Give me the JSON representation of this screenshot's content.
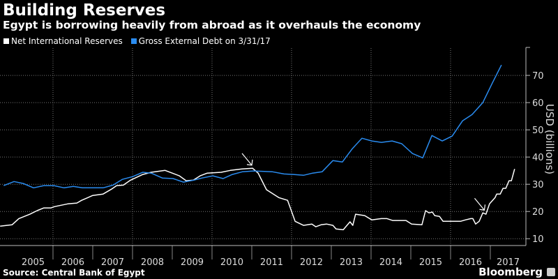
{
  "header": {
    "title": "Building Reserves",
    "subtitle": "Egypt is borrowing heavily from abroad as it overhauls the economy"
  },
  "footer": {
    "source": "Source: Central Bank of Egypt",
    "brand": "Bloomberg"
  },
  "chart_data": {
    "type": "line",
    "title": "Building Reserves",
    "subtitle": "Egypt is borrowing heavily from abroad as it overhauls the economy",
    "xlabel": "",
    "ylabel": "USD (billions)",
    "xlim": [
      2004.667,
      2017.895
    ],
    "ylim": [
      7.5,
      79.5
    ],
    "y_ticks": [
      10,
      20,
      30,
      40,
      50,
      60,
      70
    ],
    "x_tick_labels": [
      "2005",
      "2006",
      "2007",
      "2008",
      "2009",
      "2010",
      "2011",
      "2012",
      "2013",
      "2014",
      "2015",
      "2016",
      "2017"
    ],
    "grid": true,
    "legend_position": "top-left",
    "series": [
      {
        "name": "Net International Reserves",
        "color": "#ffffff",
        "x": [
          2004.67,
          2004.97,
          2005.14,
          2005.42,
          2005.6,
          2005.77,
          2005.95,
          2006.04,
          2006.37,
          2006.6,
          2006.72,
          2007.0,
          2007.26,
          2007.47,
          2007.6,
          2007.77,
          2007.95,
          2008.26,
          2008.47,
          2008.82,
          2009.0,
          2009.18,
          2009.35,
          2009.53,
          2009.7,
          2009.88,
          2010.23,
          2010.46,
          2010.75,
          2011.02,
          2011.16,
          2011.37,
          2011.68,
          2011.9,
          2012.09,
          2012.3,
          2012.51,
          2012.61,
          2012.74,
          2012.88,
          2013.04,
          2013.12,
          2013.3,
          2013.47,
          2013.54,
          2013.61,
          2013.84,
          2014.02,
          2014.26,
          2014.4,
          2014.54,
          2014.88,
          2015.02,
          2015.28,
          2015.37,
          2015.46,
          2015.54,
          2015.6,
          2015.72,
          2015.81,
          2016.25,
          2016.37,
          2016.51,
          2016.56,
          2016.63,
          2016.72,
          2016.81,
          2016.89,
          2016.98,
          2017.12,
          2017.16,
          2017.25,
          2017.32,
          2017.39,
          2017.47,
          2017.53,
          2017.61
        ],
        "values": [
          14.6,
          15.1,
          17.4,
          19.0,
          20.3,
          21.3,
          21.3,
          21.8,
          22.8,
          23.1,
          24.1,
          25.9,
          26.4,
          28.2,
          29.5,
          29.7,
          31.5,
          33.6,
          34.4,
          35.1,
          34.1,
          33.1,
          31.3,
          31.5,
          33.1,
          34.1,
          34.4,
          35.1,
          35.6,
          35.9,
          34.1,
          28.0,
          25.1,
          24.1,
          16.4,
          14.9,
          15.4,
          14.4,
          15.1,
          15.4,
          14.9,
          13.6,
          13.3,
          16.2,
          14.9,
          19.0,
          18.5,
          16.9,
          17.4,
          17.4,
          16.7,
          16.7,
          15.4,
          15.1,
          20.3,
          19.5,
          19.8,
          18.5,
          18.2,
          16.4,
          16.4,
          16.9,
          17.4,
          17.4,
          15.4,
          16.4,
          19.5,
          19.0,
          22.8,
          25.1,
          26.4,
          26.4,
          28.5,
          28.5,
          31.3,
          31.3,
          35.6
        ]
      },
      {
        "name": "Gross External Debt on 3/31/17",
        "color": "#2a8cf0",
        "x": [
          2004.76,
          2005.02,
          2005.25,
          2005.51,
          2005.77,
          2006.02,
          2006.28,
          2006.51,
          2006.74,
          2007.26,
          2007.51,
          2007.74,
          2008.0,
          2008.26,
          2008.47,
          2008.75,
          2009.02,
          2009.28,
          2009.54,
          2009.75,
          2010.02,
          2010.28,
          2010.51,
          2010.77,
          2011.04,
          2011.51,
          2011.81,
          2012.04,
          2012.3,
          2012.53,
          2012.77,
          2013.04,
          2013.28,
          2013.53,
          2013.77,
          2014.02,
          2014.26,
          2014.53,
          2014.77,
          2015.04,
          2015.3,
          2015.53,
          2015.79,
          2016.04,
          2016.3,
          2016.54,
          2016.81,
          2017.04,
          2017.28
        ],
        "values": [
          29.5,
          31.0,
          30.3,
          28.7,
          29.5,
          29.5,
          28.7,
          29.2,
          28.7,
          28.7,
          29.7,
          31.8,
          32.8,
          34.4,
          34.1,
          32.3,
          32.1,
          30.8,
          31.5,
          32.3,
          33.1,
          32.1,
          33.6,
          34.6,
          34.9,
          34.6,
          33.8,
          33.6,
          33.3,
          34.1,
          34.6,
          38.7,
          38.2,
          43.1,
          46.9,
          45.9,
          45.4,
          45.9,
          44.9,
          41.3,
          39.7,
          47.9,
          45.9,
          47.7,
          53.3,
          55.6,
          60.0,
          66.9,
          73.8
        ]
      }
    ],
    "annotations": [
      {
        "type": "arrow",
        "x": 2011.0,
        "y": 37
      },
      {
        "type": "arrow",
        "x": 2016.85,
        "y": 20.5
      }
    ]
  }
}
